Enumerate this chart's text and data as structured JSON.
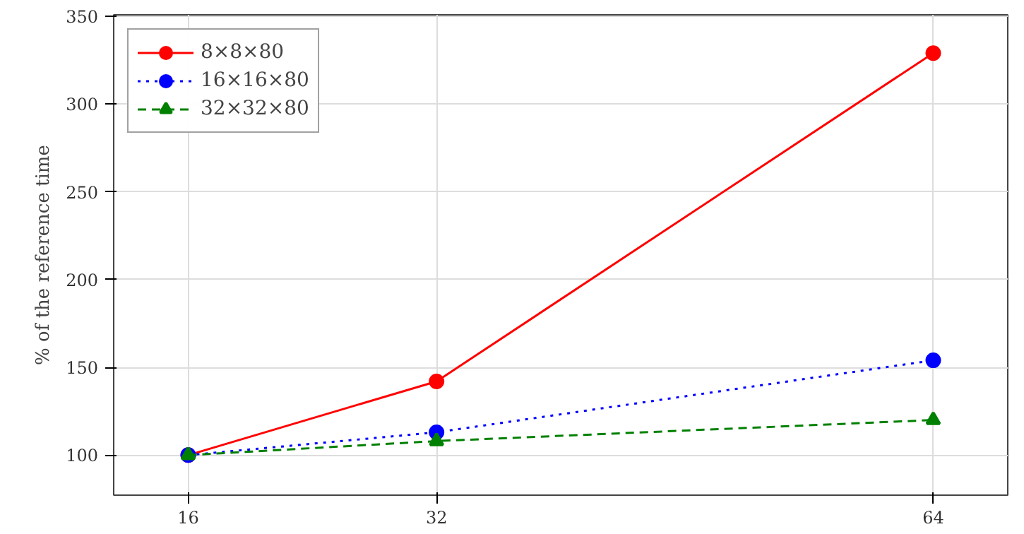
{
  "chart_data": {
    "type": "line",
    "ylabel": "% of the reference time",
    "x": [
      16,
      32,
      64
    ],
    "series": [
      {
        "name": "8×8×80",
        "color": "#ff0000",
        "values": [
          100,
          142,
          329
        ],
        "marker": "circle",
        "line_style": "solid"
      },
      {
        "name": "16×16×80",
        "color": "#0000ff",
        "values": [
          100,
          113,
          154
        ],
        "marker": "circle",
        "line_style": "dotted"
      },
      {
        "name": "32×32×80",
        "color": "#008000",
        "values": [
          100,
          108,
          120
        ],
        "marker": "triangle",
        "line_style": "dashed"
      }
    ],
    "xlim": [
      11.2,
      68.8
    ],
    "ylim": [
      77.2,
      350.8
    ],
    "xticks": [
      16,
      32,
      64
    ],
    "yticks": [
      100,
      150,
      200,
      250,
      300,
      350
    ],
    "grid": true,
    "legend": "top left"
  }
}
